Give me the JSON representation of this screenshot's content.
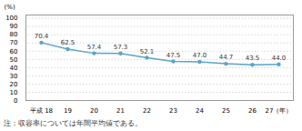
{
  "chart_data": {
    "type": "line",
    "categories": [
      "平成 18",
      "19",
      "20",
      "21",
      "22",
      "23",
      "24",
      "25",
      "26",
      "27（年）"
    ],
    "values": [
      70.4,
      62.5,
      57.4,
      57.3,
      52.1,
      47.5,
      47.0,
      44.7,
      43.5,
      44.0
    ],
    "value_labels": [
      "70.4",
      "62.5",
      "57.4",
      "57.3",
      "52.1",
      "47.5",
      "47.0",
      "44.7",
      "43.5",
      "44.0"
    ],
    "color": "#5ba3c9",
    "marker": "circle",
    "ylabel": "(%)",
    "note": "注：収容率については年間平均値である。",
    "ylim": [
      0,
      104
    ],
    "yticks": [
      0,
      10,
      20,
      30,
      40,
      50,
      60,
      70,
      80,
      90,
      100
    ],
    "grid": true,
    "data_labels": true
  }
}
